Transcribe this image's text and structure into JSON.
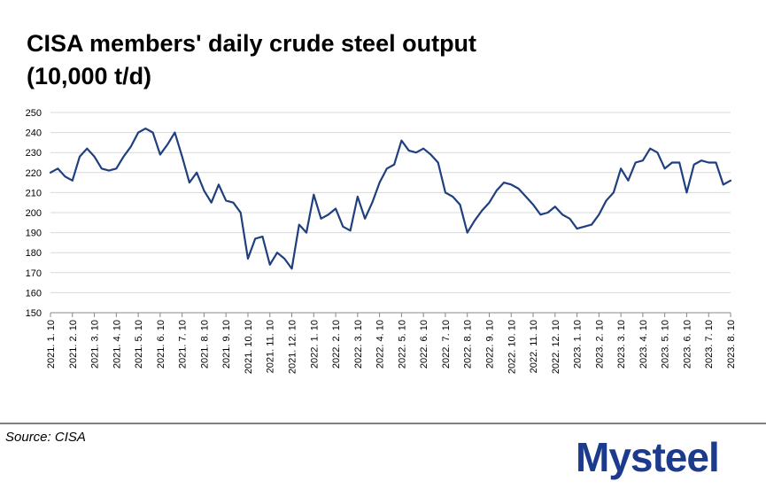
{
  "chart_data": {
    "type": "line",
    "title_lines": [
      "CISA members' daily crude steel output",
      "(10,000 t/d)"
    ],
    "source": "Source: CISA",
    "logo": "Mysteel",
    "color": "#1f3f7f",
    "grid": true,
    "ylim": [
      150,
      250
    ],
    "yticks": [
      150,
      160,
      170,
      180,
      190,
      200,
      210,
      220,
      230,
      240,
      250
    ],
    "categories": [
      "2021. 1. 10",
      null,
      null,
      "2021. 2. 10",
      null,
      null,
      "2021. 3. 10",
      null,
      null,
      "2021. 4. 10",
      null,
      null,
      "2021. 5. 10",
      null,
      null,
      "2021. 6. 10",
      null,
      null,
      "2021. 7. 10",
      null,
      null,
      "2021. 8. 10",
      null,
      null,
      "2021. 9. 10",
      null,
      null,
      "2021. 10. 10",
      null,
      null,
      "2021. 11. 10",
      null,
      null,
      "2021. 12. 10",
      null,
      null,
      "2022. 1. 10",
      null,
      null,
      "2022. 2. 10",
      null,
      null,
      "2022. 3. 10",
      null,
      null,
      "2022. 4. 10",
      null,
      null,
      "2022. 5. 10",
      null,
      null,
      "2022. 6. 10",
      null,
      null,
      "2022. 7. 10",
      null,
      null,
      "2022. 8. 10",
      null,
      null,
      "2022. 9. 10",
      null,
      null,
      "2022. 10. 10",
      null,
      null,
      "2022. 11. 10",
      null,
      null,
      "2022. 12. 10",
      null,
      null,
      "2023. 1. 10",
      null,
      null,
      "2023. 2. 10",
      null,
      null,
      "2023. 3. 10",
      null,
      null,
      "2023. 4. 10",
      null,
      null,
      "2023. 5. 10",
      null,
      null,
      "2023. 6. 10",
      null,
      null,
      "2023. 7. 10",
      null,
      null,
      "2023. 8. 10"
    ],
    "values": [
      220,
      222,
      218,
      216,
      228,
      232,
      228,
      222,
      221,
      222,
      228,
      233,
      240,
      242,
      240,
      229,
      234,
      240,
      228,
      215,
      220,
      211,
      205,
      214,
      206,
      205,
      200,
      177,
      187,
      188,
      174,
      180,
      177,
      172,
      194,
      190,
      209,
      197,
      199,
      202,
      193,
      191,
      208,
      197,
      205,
      215,
      222,
      224,
      236,
      231,
      230,
      232,
      229,
      225,
      210,
      208,
      204,
      190,
      196,
      201,
      205,
      211,
      215,
      214,
      212,
      208,
      204,
      199,
      200,
      203,
      199,
      197,
      192,
      193,
      194,
      199,
      206,
      210,
      222,
      216,
      225,
      226,
      232,
      230,
      222,
      225,
      225,
      210,
      224,
      226,
      225,
      225,
      214,
      216
    ]
  }
}
